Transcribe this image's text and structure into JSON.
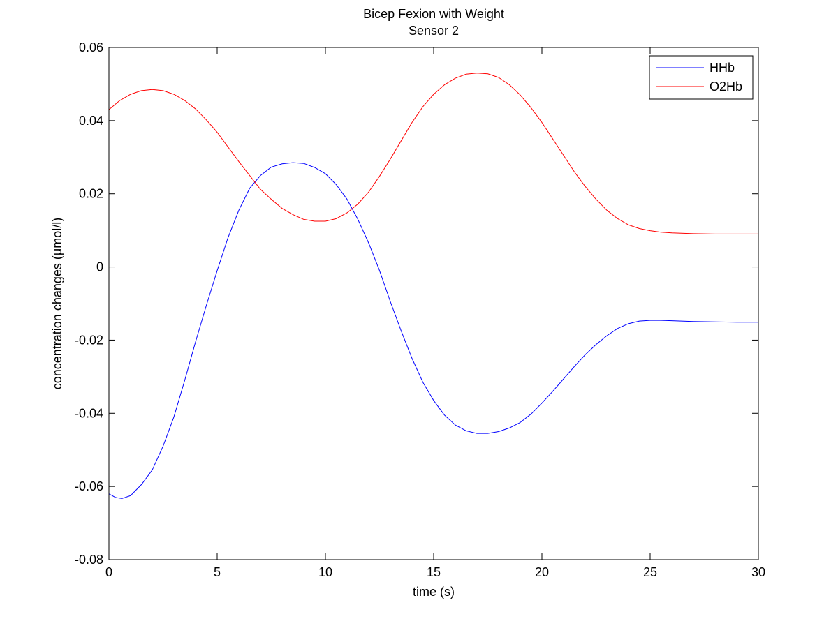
{
  "chart_data": {
    "type": "line",
    "title": "Bicep Fexion with Weight",
    "subtitle": "Sensor 2",
    "xlabel": "time (s)",
    "ylabel": "concentration changes (μmol/l)",
    "xlim": [
      0,
      30
    ],
    "ylim": [
      -0.08,
      0.06
    ],
    "x_ticks": [
      0,
      5,
      10,
      15,
      20,
      25,
      30
    ],
    "x_tick_labels": [
      "0",
      "5",
      "10",
      "15",
      "20",
      "25",
      "30"
    ],
    "y_ticks": [
      -0.08,
      -0.06,
      -0.04,
      -0.02,
      0,
      0.02,
      0.04,
      0.06
    ],
    "y_tick_labels": [
      "-0.08",
      "-0.06",
      "-0.04",
      "-0.02",
      "0",
      "0.02",
      "0.04",
      "0.06"
    ],
    "grid": false,
    "legend_position": "top-right",
    "series": [
      {
        "name": "HHb",
        "color": "#0000ff",
        "x": [
          0,
          0.3,
          0.6,
          1,
          1.5,
          2,
          2.5,
          3,
          3.5,
          4,
          4.5,
          5,
          5.5,
          6,
          6.5,
          7,
          7.5,
          8,
          8.5,
          9,
          9.5,
          10,
          10.5,
          11,
          11.5,
          12,
          12.5,
          13,
          13.5,
          14,
          14.5,
          15,
          15.5,
          16,
          16.5,
          17,
          17.5,
          18,
          18.5,
          19,
          19.5,
          20,
          20.5,
          21,
          21.5,
          22,
          22.5,
          23,
          23.5,
          24,
          24.5,
          25,
          25.5,
          26,
          27,
          28,
          29,
          30
        ],
        "y": [
          -0.062,
          -0.063,
          -0.0633,
          -0.0625,
          -0.0595,
          -0.0555,
          -0.049,
          -0.041,
          -0.031,
          -0.0205,
          -0.0105,
          -0.001,
          0.008,
          0.0155,
          0.0215,
          0.025,
          0.0273,
          0.0282,
          0.0285,
          0.0283,
          0.0272,
          0.0255,
          0.0225,
          0.0185,
          0.013,
          0.0065,
          -0.001,
          -0.0095,
          -0.0175,
          -0.025,
          -0.0315,
          -0.0365,
          -0.0405,
          -0.0432,
          -0.0448,
          -0.0455,
          -0.0455,
          -0.045,
          -0.044,
          -0.0425,
          -0.0402,
          -0.0372,
          -0.034,
          -0.0306,
          -0.0272,
          -0.024,
          -0.0212,
          -0.0188,
          -0.0168,
          -0.0155,
          -0.0148,
          -0.0146,
          -0.0146,
          -0.0147,
          -0.0149,
          -0.015,
          -0.0151,
          -0.0151
        ]
      },
      {
        "name": "O2Hb",
        "color": "#ff0000",
        "x": [
          0,
          0.5,
          1,
          1.5,
          2,
          2.5,
          3,
          3.5,
          4,
          4.5,
          5,
          5.5,
          6,
          6.5,
          7,
          7.5,
          8,
          8.5,
          9,
          9.5,
          10,
          10.5,
          11,
          11.5,
          12,
          12.5,
          13,
          13.5,
          14,
          14.5,
          15,
          15.5,
          16,
          16.5,
          17,
          17.5,
          18,
          18.5,
          19,
          19.5,
          20,
          20.5,
          21,
          21.5,
          22,
          22.5,
          23,
          23.5,
          24,
          24.5,
          25,
          25.5,
          26,
          27,
          28,
          29,
          30
        ],
        "y": [
          0.043,
          0.0455,
          0.0472,
          0.0482,
          0.0485,
          0.0482,
          0.0472,
          0.0455,
          0.0432,
          0.0402,
          0.0368,
          0.0328,
          0.0288,
          0.025,
          0.0212,
          0.0185,
          0.016,
          0.0143,
          0.013,
          0.0125,
          0.0125,
          0.0132,
          0.0148,
          0.0172,
          0.0205,
          0.0248,
          0.0295,
          0.0345,
          0.0395,
          0.0438,
          0.0472,
          0.0498,
          0.0516,
          0.0527,
          0.053,
          0.0528,
          0.0518,
          0.0498,
          0.047,
          0.0435,
          0.0395,
          0.035,
          0.0305,
          0.026,
          0.022,
          0.0185,
          0.0155,
          0.0132,
          0.0115,
          0.0105,
          0.0099,
          0.0095,
          0.0093,
          0.0091,
          0.009,
          0.009,
          0.009
        ]
      }
    ]
  }
}
